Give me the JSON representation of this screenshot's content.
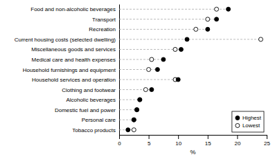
{
  "chart_data": {
    "type": "dot",
    "xlabel": "%",
    "categories": [
      "Food and non-alcoholic beverages",
      "Transport",
      "Recreation",
      "Current housing costs (selected dwelling)",
      "Miscellaneous goods and services",
      "Medical care and health expenses",
      "Household furnishings and equipment",
      "Household services and operation",
      "Clothing and footwear",
      "Alcoholic beverages",
      "Domestic fuel and power",
      "Personal care",
      "Tobacco products"
    ],
    "series": [
      {
        "name": "Highest",
        "color": "#000000",
        "marker": "filled",
        "values": [
          18.5,
          16.5,
          15.0,
          11.5,
          10.5,
          7.5,
          6.5,
          10.0,
          5.5,
          3.5,
          3.0,
          2.5,
          1.5
        ]
      },
      {
        "name": "Lowest",
        "color": "#000000",
        "marker": "open",
        "values": [
          16.5,
          15.0,
          13.0,
          24.0,
          9.5,
          5.5,
          5.0,
          9.5,
          4.5,
          3.5,
          3.0,
          2.5,
          2.5
        ]
      }
    ],
    "color": "#aaaaaa",
    "line_style": "dashed",
    "xlim": [
      0,
      25
    ],
    "xticks": [
      0,
      5,
      10,
      15,
      20,
      25
    ],
    "legend": "lower right"
  }
}
